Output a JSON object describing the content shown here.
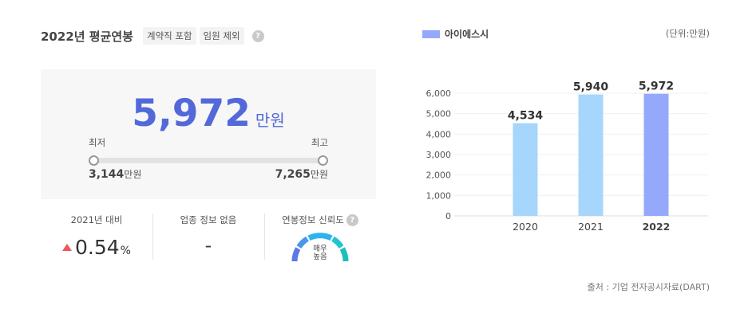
{
  "header": {
    "title": "2022년 평균연봉",
    "tags": [
      "계약직 포함",
      "임원 제외"
    ],
    "help_icon": "question-icon"
  },
  "salary": {
    "value": "5,972",
    "unit": "만원",
    "min_label": "최저",
    "max_label": "최고",
    "min_value": "3,144",
    "max_value": "7,265",
    "value_unit": "만원"
  },
  "stats": {
    "yoy_caption": "2021년 대비",
    "yoy_value": "0.54",
    "yoy_unit": "%",
    "industry_caption": "업종 정보 없음",
    "industry_value": "-",
    "reliability_caption": "연봉정보 신뢰도",
    "reliability_line1": "매우",
    "reliability_line2": "높음"
  },
  "chart_data": {
    "type": "bar",
    "legend": "아이에스시",
    "unit_note": "(단위:만원)",
    "categories": [
      "2020",
      "2021",
      "2022"
    ],
    "values": [
      4534,
      5940,
      5972
    ],
    "value_labels": [
      "4,534",
      "5,940",
      "5,972"
    ],
    "yticks": [
      "0",
      "1,000",
      "2,000",
      "3,000",
      "4,000",
      "5,000",
      "6,000"
    ],
    "ylim": [
      0,
      6000
    ],
    "colors": [
      "#a6d6fb",
      "#a6d6fb",
      "#94a9fb"
    ],
    "highlight_index": 2
  },
  "source": "출처 : 기업 전자공시자료(DART)"
}
